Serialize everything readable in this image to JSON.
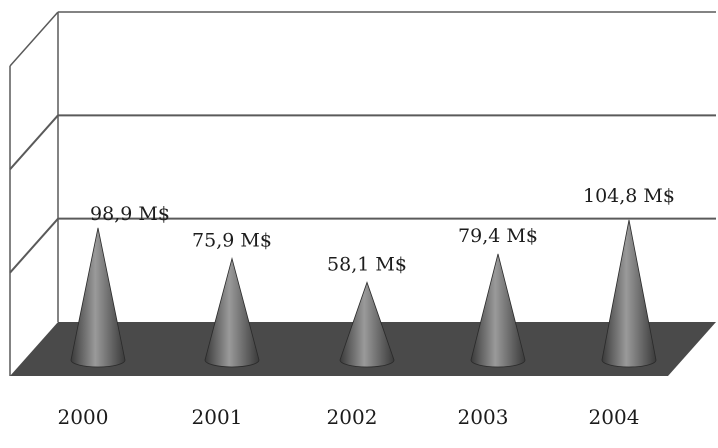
{
  "chart_data": {
    "type": "bar",
    "style": "3d-cone",
    "title": "",
    "xlabel": "",
    "ylabel": "",
    "categories": [
      "2000",
      "2001",
      "2002",
      "2003",
      "2004"
    ],
    "values": [
      98.9,
      75.9,
      58.1,
      79.4,
      104.8
    ],
    "data_labels": [
      "98,9 M$",
      "75,9 M$",
      "58,1 M$",
      "79,4 M$",
      "104,8  M$"
    ],
    "ylim": [
      0,
      160
    ],
    "grid": true,
    "legend": "none",
    "colors": {
      "cone_dark": "#3a3a3a",
      "cone_mid": "#6a6a6a",
      "cone_light": "#9a9a9a",
      "floor": "#4a4a4a",
      "gridline": "#5a5a5a",
      "background": "#ffffff"
    }
  }
}
